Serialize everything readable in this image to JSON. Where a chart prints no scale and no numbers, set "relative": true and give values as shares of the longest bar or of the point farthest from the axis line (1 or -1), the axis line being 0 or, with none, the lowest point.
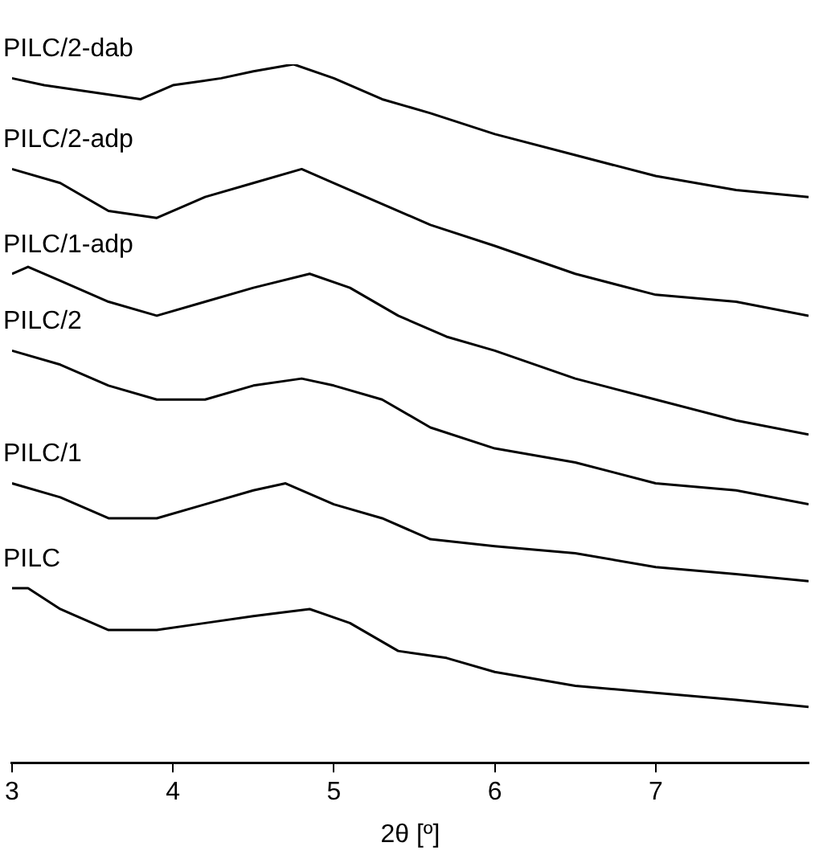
{
  "chart_data": {
    "type": "line",
    "relative": true,
    "xlabel": "2θ [º]",
    "xlim": [
      3,
      7.95
    ],
    "xticks": [
      3,
      4,
      5,
      6,
      7
    ],
    "tick_labels": "x",
    "grid": false,
    "legend": false,
    "marker": "none",
    "line_style": "solid",
    "series": [
      {
        "name": "PILC/2-dab",
        "color": "#000000",
        "x": [
          3,
          3.2,
          3.5,
          3.8,
          4.0,
          4.3,
          4.5,
          4.75,
          5.0,
          5.3,
          5.6,
          6.0,
          6.5,
          7.0,
          7.5,
          7.95
        ],
        "values": [
          0.98,
          0.97,
          0.96,
          0.95,
          0.97,
          0.98,
          0.99,
          1.0,
          0.98,
          0.95,
          0.93,
          0.9,
          0.87,
          0.84,
          0.82,
          0.81
        ]
      },
      {
        "name": "PILC/2-adp",
        "color": "#000000",
        "x": [
          3,
          3.3,
          3.6,
          3.9,
          4.2,
          4.5,
          4.8,
          5.0,
          5.3,
          5.6,
          6.0,
          6.5,
          7.0,
          7.5,
          7.95
        ],
        "values": [
          0.85,
          0.83,
          0.79,
          0.78,
          0.81,
          0.83,
          0.85,
          0.83,
          0.8,
          0.77,
          0.74,
          0.7,
          0.67,
          0.66,
          0.64
        ]
      },
      {
        "name": "PILC/1-adp",
        "color": "#000000",
        "x": [
          3,
          3.1,
          3.3,
          3.6,
          3.9,
          4.2,
          4.5,
          4.85,
          5.1,
          5.4,
          5.7,
          6.0,
          6.5,
          7.0,
          7.5,
          7.95
        ],
        "values": [
          0.7,
          0.71,
          0.69,
          0.66,
          0.64,
          0.66,
          0.68,
          0.7,
          0.68,
          0.64,
          0.61,
          0.59,
          0.55,
          0.52,
          0.49,
          0.47
        ]
      },
      {
        "name": "PILC/2",
        "color": "#000000",
        "x": [
          3,
          3.3,
          3.6,
          3.9,
          4.2,
          4.5,
          4.8,
          5.0,
          5.3,
          5.6,
          6.0,
          6.5,
          7.0,
          7.5,
          7.95
        ],
        "values": [
          0.59,
          0.57,
          0.54,
          0.52,
          0.52,
          0.54,
          0.55,
          0.54,
          0.52,
          0.48,
          0.45,
          0.43,
          0.4,
          0.39,
          0.37
        ]
      },
      {
        "name": "PILC/1",
        "color": "#000000",
        "x": [
          3,
          3.3,
          3.6,
          3.9,
          4.2,
          4.5,
          4.7,
          5.0,
          5.3,
          5.6,
          6.0,
          6.5,
          7.0,
          7.5,
          7.95
        ],
        "values": [
          0.4,
          0.38,
          0.35,
          0.35,
          0.37,
          0.39,
          0.4,
          0.37,
          0.35,
          0.32,
          0.31,
          0.3,
          0.28,
          0.27,
          0.26
        ]
      },
      {
        "name": "PILC",
        "color": "#000000",
        "x": [
          3,
          3.1,
          3.3,
          3.6,
          3.9,
          4.2,
          4.5,
          4.85,
          5.1,
          5.4,
          5.7,
          6.0,
          6.5,
          7.0,
          7.5,
          7.95
        ],
        "values": [
          0.25,
          0.25,
          0.22,
          0.19,
          0.19,
          0.2,
          0.21,
          0.22,
          0.2,
          0.16,
          0.15,
          0.13,
          0.11,
          0.1,
          0.09,
          0.08
        ]
      }
    ]
  }
}
